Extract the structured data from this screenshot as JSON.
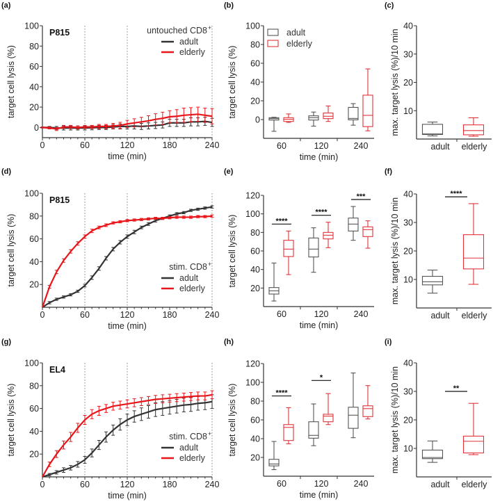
{
  "colors": {
    "adult": "#333333",
    "elderly": "#e8161b",
    "adult_box": "#555555",
    "elderly_box": "#e0343a",
    "guide": "#999999"
  },
  "chart_data": [
    {
      "panel": "(a)",
      "type": "line",
      "label": "P815",
      "legend_title": "untouched CD8",
      "legend_title_sup": "+",
      "xlabel": "time (min)",
      "ylabel": "target cell lysis (%)",
      "xlim": [
        0,
        240
      ],
      "ylim": [
        -10,
        100
      ],
      "xticks": [
        0,
        60,
        120,
        180,
        240
      ],
      "yticks": [
        0,
        20,
        40,
        60,
        80,
        100
      ],
      "vlines": [
        60,
        120,
        240
      ],
      "grid": false,
      "legend": "top-right",
      "x": [
        0,
        10,
        20,
        30,
        40,
        50,
        60,
        70,
        80,
        90,
        100,
        110,
        120,
        130,
        140,
        150,
        160,
        170,
        180,
        190,
        200,
        210,
        220,
        230,
        240
      ],
      "series": [
        {
          "name": "adult",
          "color": "#333333",
          "values": [
            0,
            0,
            -0.5,
            -0.5,
            -0.5,
            -0.5,
            -0.5,
            -0.3,
            0,
            0,
            0.5,
            1,
            1,
            1.5,
            1,
            1.5,
            2,
            2.5,
            4.5,
            4.5,
            4.5,
            5.5,
            5.5,
            6,
            5
          ],
          "errors": [
            0.5,
            1,
            1.5,
            2,
            2,
            2,
            2,
            2,
            2,
            2,
            2,
            2.5,
            2.5,
            3,
            3,
            3,
            3,
            3,
            3.5,
            3.5,
            3.5,
            4,
            4,
            4,
            4
          ]
        },
        {
          "name": "elderly",
          "color": "#e8161b",
          "values": [
            0,
            -0.5,
            -1.5,
            0.5,
            0.5,
            0,
            0.5,
            0.5,
            1,
            1,
            1.5,
            2,
            3.5,
            4.5,
            5.5,
            6.5,
            8,
            9,
            10.5,
            11,
            12,
            12.5,
            13,
            12,
            11
          ],
          "errors": [
            0.5,
            1,
            1.5,
            1.5,
            1.5,
            1.5,
            1.5,
            1.5,
            2,
            2,
            2.5,
            3,
            3.5,
            4,
            4.5,
            5,
            5.5,
            6,
            6,
            6.5,
            7,
            7,
            7,
            7,
            7.5
          ]
        }
      ]
    },
    {
      "panel": "(b)",
      "type": "box",
      "xlabel": "time (min)",
      "ylabel": "target cell lysis (%)",
      "ylim": [
        -20,
        100
      ],
      "yticks": [
        0,
        20,
        40,
        60,
        80,
        100
      ],
      "categories": [
        "60",
        "120",
        "240"
      ],
      "legend": "top-left",
      "series": [
        {
          "name": "adult",
          "color": "#555555",
          "boxes": [
            {
              "min": -12.5,
              "q1": -0.5,
              "median": 1,
              "q3": 2,
              "max": 2.5
            },
            {
              "min": -7,
              "q1": -0.5,
              "median": 2,
              "q3": 4,
              "max": 8
            },
            {
              "min": -6,
              "q1": -0.3,
              "median": 1.2,
              "q3": 13,
              "max": 17
            }
          ]
        },
        {
          "name": "elderly",
          "color": "#e0343a",
          "boxes": [
            {
              "min": -3,
              "q1": -2,
              "median": 0.3,
              "q3": 2,
              "max": 6
            },
            {
              "min": -2,
              "q1": 1,
              "median": 3.5,
              "q3": 7,
              "max": 14.5
            },
            {
              "min": -12,
              "q1": -7.5,
              "median": 4.5,
              "q3": 26,
              "max": 54
            }
          ]
        }
      ],
      "significance": []
    },
    {
      "panel": "(c)",
      "type": "box",
      "xlabel": "",
      "ylabel": "max. target lysis (%)/10 min",
      "ylim": [
        0,
        40
      ],
      "yticks": [
        10,
        20,
        30,
        40
      ],
      "categories": [
        "adult",
        "elderly"
      ],
      "series": [
        {
          "name": "adult",
          "color": "#555555",
          "boxes": [
            {
              "min": 1.1,
              "q1": 1.6,
              "median": 1.8,
              "q3": 5.2,
              "max": 6
            }
          ]
        },
        {
          "name": "elderly",
          "color": "#e0343a",
          "boxes": [
            {
              "min": 1,
              "q1": 1.5,
              "median": 3,
              "q3": 5,
              "max": 7.5
            }
          ]
        }
      ],
      "significance": []
    },
    {
      "panel": "(d)",
      "type": "line",
      "label": "P815",
      "legend_title": "stim. CD8",
      "legend_title_sup": "+",
      "xlabel": "time (min)",
      "ylabel": "target cell lysis (%)",
      "xlim": [
        0,
        240
      ],
      "ylim": [
        0,
        100
      ],
      "xticks": [
        0,
        60,
        120,
        180,
        240
      ],
      "yticks": [
        20,
        40,
        60,
        80,
        100
      ],
      "vlines": [
        60,
        120,
        240
      ],
      "grid": false,
      "legend": "bottom-right",
      "x": [
        0,
        10,
        20,
        30,
        40,
        50,
        60,
        70,
        80,
        90,
        100,
        110,
        120,
        130,
        140,
        150,
        160,
        170,
        180,
        190,
        200,
        210,
        220,
        230,
        240
      ],
      "series": [
        {
          "name": "adult",
          "color": "#333333",
          "values": [
            0,
            4,
            7,
            9,
            11,
            14,
            19,
            26,
            34,
            43,
            51,
            57,
            62,
            66,
            70,
            73,
            76,
            78,
            80,
            82,
            83,
            85,
            86,
            87,
            88
          ],
          "errors": [
            0,
            1,
            1,
            1,
            1,
            1,
            1.2,
            1.5,
            1.5,
            1.5,
            1.5,
            1.5,
            1.5,
            1.5,
            1.2,
            1.2,
            1.2,
            1,
            1,
            1,
            1,
            1,
            1,
            1,
            1
          ]
        },
        {
          "name": "elderly",
          "color": "#e8161b",
          "values": [
            0,
            18,
            31,
            41,
            49,
            56,
            62,
            67,
            70,
            72,
            74,
            75,
            76,
            76.5,
            77,
            77.5,
            78,
            78,
            78.5,
            79,
            79,
            79,
            79.5,
            79.5,
            80
          ],
          "errors": [
            0,
            1.2,
            1.5,
            1.5,
            1.5,
            1.5,
            1.5,
            1.5,
            1.2,
            1.2,
            1,
            1,
            1,
            1,
            1,
            1,
            1,
            1,
            1,
            1,
            1,
            1,
            1,
            1,
            1
          ]
        }
      ]
    },
    {
      "panel": "(e)",
      "type": "box",
      "xlabel": "time (min)",
      "ylabel": "target cell lysis (%)",
      "ylim": [
        0,
        120
      ],
      "yticks": [
        20,
        40,
        60,
        80,
        100,
        120
      ],
      "categories": [
        "60",
        "120",
        "240"
      ],
      "series": [
        {
          "name": "adult",
          "color": "#555555",
          "boxes": [
            {
              "min": 6,
              "q1": 13.5,
              "median": 17,
              "q3": 20.5,
              "max": 47
            },
            {
              "min": 37,
              "q1": 53.5,
              "median": 62,
              "q3": 74,
              "max": 85
            },
            {
              "min": 71.5,
              "q1": 81.5,
              "median": 89,
              "q3": 95.5,
              "max": 108
            }
          ]
        },
        {
          "name": "elderly",
          "color": "#e0343a",
          "boxes": [
            {
              "min": 34.5,
              "q1": 54,
              "median": 62,
              "q3": 71.5,
              "max": 81.5
            },
            {
              "min": 63.5,
              "q1": 73,
              "median": 77,
              "q3": 80,
              "max": 91
            },
            {
              "min": 63,
              "q1": 75.5,
              "median": 83,
              "q3": 86,
              "max": 92.5
            }
          ]
        }
      ],
      "significance": [
        {
          "category": "60",
          "label": "****",
          "y": 89
        },
        {
          "category": "120",
          "label": "****",
          "y": 98.5
        },
        {
          "category": "240",
          "label": "***",
          "y": 115.5
        }
      ]
    },
    {
      "panel": "(f)",
      "type": "box",
      "xlabel": "",
      "ylabel": "max. target lysis (%)/10 min",
      "ylim": [
        0,
        40
      ],
      "yticks": [
        10,
        20,
        30,
        40
      ],
      "categories": [
        "adult",
        "elderly"
      ],
      "series": [
        {
          "name": "adult",
          "color": "#555555",
          "boxes": [
            {
              "min": 5.2,
              "q1": 8.1,
              "median": 9.2,
              "q3": 11.1,
              "max": 13.3
            }
          ]
        },
        {
          "name": "elderly",
          "color": "#e0343a",
          "boxes": [
            {
              "min": 8.3,
              "q1": 13.7,
              "median": 17.5,
              "q3": 25.7,
              "max": 36.6
            }
          ]
        }
      ],
      "significance": [
        {
          "category": "all",
          "label": "****",
          "y": 39
        }
      ]
    },
    {
      "panel": "(g)",
      "type": "line",
      "label": "EL4",
      "legend_title": "stim. CD8",
      "legend_title_sup": "+",
      "xlabel": "time (min)",
      "ylabel": "target cell lysis (%)",
      "xlim": [
        0,
        240
      ],
      "ylim": [
        0,
        100
      ],
      "xticks": [
        0,
        60,
        120,
        180,
        240
      ],
      "yticks": [
        20,
        40,
        60,
        80,
        100
      ],
      "vlines": [
        60,
        120,
        240
      ],
      "grid": false,
      "legend": "bottom-right",
      "x": [
        0,
        10,
        20,
        30,
        40,
        50,
        60,
        70,
        80,
        90,
        100,
        110,
        120,
        130,
        140,
        150,
        160,
        170,
        180,
        190,
        200,
        210,
        220,
        230,
        240
      ],
      "series": [
        {
          "name": "adult",
          "color": "#333333",
          "values": [
            0,
            2,
            4,
            6,
            8,
            11,
            15,
            21,
            28,
            35,
            41,
            46,
            50,
            53,
            55,
            57,
            59,
            60,
            61,
            62,
            63,
            63.5,
            64.5,
            65,
            66
          ],
          "errors": [
            0,
            1,
            1.5,
            2,
            2,
            2.5,
            3,
            3.5,
            4,
            4.5,
            4.5,
            5,
            5,
            5,
            5.5,
            5.5,
            6,
            6,
            6,
            6,
            6,
            6,
            6,
            6,
            6
          ]
        },
        {
          "name": "elderly",
          "color": "#e8161b",
          "values": [
            0,
            11,
            20,
            28,
            35,
            43,
            50,
            55,
            58,
            60,
            62,
            63,
            64,
            65,
            66,
            67,
            68,
            68.5,
            69,
            69.5,
            70,
            70.5,
            71,
            71,
            72
          ],
          "errors": [
            0,
            2,
            3,
            3.5,
            4,
            4,
            4,
            4,
            4,
            3.5,
            3.5,
            3.5,
            3.5,
            3.5,
            3.5,
            3.5,
            3.5,
            3.5,
            3.5,
            3.5,
            3.5,
            3.5,
            3.5,
            3.5,
            3.5
          ]
        }
      ]
    },
    {
      "panel": "(h)",
      "type": "box",
      "xlabel": "time (min)",
      "ylabel": "target cell lysis (%)",
      "ylim": [
        0,
        120
      ],
      "yticks": [
        20,
        40,
        60,
        80,
        100,
        120
      ],
      "categories": [
        "60",
        "120",
        "240"
      ],
      "series": [
        {
          "name": "adult",
          "color": "#555555",
          "boxes": [
            {
              "min": 7,
              "q1": 11,
              "median": 13,
              "q3": 18,
              "max": 37
            },
            {
              "min": 32.5,
              "q1": 40.5,
              "median": 43.5,
              "q3": 58,
              "max": 77
            },
            {
              "min": 41,
              "q1": 51,
              "median": 65,
              "q3": 73.5,
              "max": 110
            }
          ]
        },
        {
          "name": "elderly",
          "color": "#e0343a",
          "boxes": [
            {
              "min": 34.5,
              "q1": 38,
              "median": 52,
              "q3": 55,
              "max": 73
            },
            {
              "min": 55,
              "q1": 58,
              "median": 64,
              "q3": 66,
              "max": 88
            },
            {
              "min": 61,
              "q1": 63.5,
              "median": 72,
              "q3": 75,
              "max": 96.5
            }
          ]
        }
      ],
      "significance": [
        {
          "category": "60",
          "label": "****",
          "y": 85.5
        },
        {
          "category": "120",
          "label": "*",
          "y": 102
        }
      ]
    },
    {
      "panel": "(i)",
      "type": "box",
      "xlabel": "",
      "ylabel": "max. target lysis (%)/10 min",
      "ylim": [
        0,
        40
      ],
      "yticks": [
        10,
        20,
        30,
        40
      ],
      "categories": [
        "adult",
        "elderly"
      ],
      "series": [
        {
          "name": "adult",
          "color": "#555555",
          "boxes": [
            {
              "min": 5.1,
              "q1": 6.4,
              "median": 6.8,
              "q3": 9.4,
              "max": 12.6
            }
          ]
        },
        {
          "name": "elderly",
          "color": "#e0343a",
          "boxes": [
            {
              "min": 7.8,
              "q1": 8.4,
              "median": 12.5,
              "q3": 14.3,
              "max": 25.8
            }
          ]
        }
      ],
      "significance": [
        {
          "category": "all",
          "label": "**",
          "y": 30
        }
      ]
    }
  ]
}
